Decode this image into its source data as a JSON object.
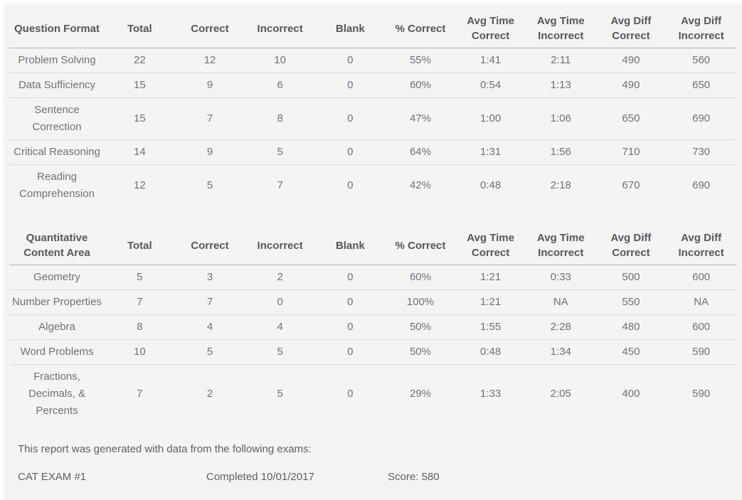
{
  "colors": {
    "surface_background": "#f4f4f5",
    "header_text": "#54575b",
    "cell_text": "#6e7176",
    "header_border": "#b2b2b4",
    "row_border": "#dcdcde"
  },
  "tables": [
    {
      "id": "question-format",
      "columns": [
        "Question Format",
        "Total",
        "Correct",
        "Incorrect",
        "Blank",
        "% Correct",
        "Avg Time Correct",
        "Avg Time Incorrect",
        "Avg Diff Correct",
        "Avg Diff Incorrect"
      ],
      "rows": [
        [
          "Problem Solving",
          "22",
          "12",
          "10",
          "0",
          "55%",
          "1:41",
          "2:11",
          "490",
          "560"
        ],
        [
          "Data Sufficiency",
          "15",
          "9",
          "6",
          "0",
          "60%",
          "0:54",
          "1:13",
          "490",
          "650"
        ],
        [
          "Sentence Correction",
          "15",
          "7",
          "8",
          "0",
          "47%",
          "1:00",
          "1:06",
          "650",
          "690"
        ],
        [
          "Critical Reasoning",
          "14",
          "9",
          "5",
          "0",
          "64%",
          "1:31",
          "1:56",
          "710",
          "730"
        ],
        [
          "Reading Comprehension",
          "12",
          "5",
          "7",
          "0",
          "42%",
          "0:48",
          "2:18",
          "670",
          "690"
        ]
      ]
    },
    {
      "id": "quantitative-content-area",
      "columns": [
        "Quantitative Content Area",
        "Total",
        "Correct",
        "Incorrect",
        "Blank",
        "% Correct",
        "Avg Time Correct",
        "Avg Time Incorrect",
        "Avg Diff Correct",
        "Avg Diff Incorrect"
      ],
      "rows": [
        [
          "Geometry",
          "5",
          "3",
          "2",
          "0",
          "60%",
          "1:21",
          "0:33",
          "500",
          "600"
        ],
        [
          "Number Properties",
          "7",
          "7",
          "0",
          "0",
          "100%",
          "1:21",
          "NA",
          "550",
          "NA"
        ],
        [
          "Algebra",
          "8",
          "4",
          "4",
          "0",
          "50%",
          "1:55",
          "2:28",
          "480",
          "600"
        ],
        [
          "Word Problems",
          "10",
          "5",
          "5",
          "0",
          "50%",
          "0:48",
          "1:34",
          "450",
          "590"
        ],
        [
          "Fractions, Decimals, & Percents",
          "7",
          "2",
          "5",
          "0",
          "29%",
          "1:33",
          "2:05",
          "400",
          "590"
        ]
      ]
    }
  ],
  "footer": {
    "intro": "This report was generated with data from the following exams:",
    "exams": [
      {
        "name": "CAT EXAM #1",
        "completed": "Completed 10/01/2017",
        "score": "Score: 580"
      }
    ]
  }
}
